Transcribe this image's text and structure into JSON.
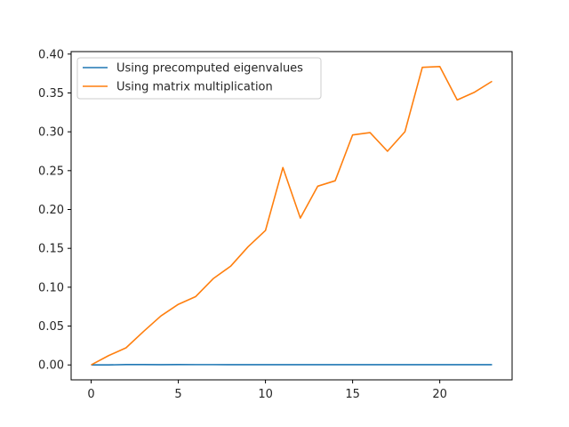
{
  "chart_data": {
    "type": "line",
    "title": "",
    "xlabel": "",
    "ylabel": "",
    "xlim": [
      -1.15,
      24.15
    ],
    "ylim": [
      -0.0192,
      0.4032
    ],
    "xticks": [
      0,
      5,
      10,
      15,
      20
    ],
    "yticks": [
      0.0,
      0.05,
      0.1,
      0.15,
      0.2,
      0.25,
      0.3,
      0.35,
      0.4
    ],
    "ytick_labels": [
      "0.00",
      "0.05",
      "0.10",
      "0.15",
      "0.20",
      "0.25",
      "0.30",
      "0.35",
      "0.40"
    ],
    "grid": false,
    "legend_position": "top-left",
    "x": [
      0,
      1,
      2,
      3,
      4,
      5,
      6,
      7,
      8,
      9,
      10,
      11,
      12,
      13,
      14,
      15,
      16,
      17,
      18,
      19,
      20,
      21,
      22,
      23
    ],
    "series": [
      {
        "name": "Using precomputed eigenvalues",
        "color": "#1f77b4",
        "values": [
          0.0,
          0.0,
          0.0005,
          0.0005,
          0.0003,
          0.0005,
          0.0004,
          0.0004,
          0.0003,
          0.0003,
          0.0003,
          0.0003,
          0.0003,
          0.0003,
          0.0003,
          0.0003,
          0.0003,
          0.0003,
          0.0003,
          0.0003,
          0.0003,
          0.0003,
          0.0003,
          0.0003
        ]
      },
      {
        "name": "Using matrix multiplication",
        "color": "#ff7f0e",
        "values": [
          0.0,
          0.012,
          0.022,
          0.043,
          0.063,
          0.078,
          0.088,
          0.111,
          0.127,
          0.152,
          0.173,
          0.254,
          0.189,
          0.23,
          0.237,
          0.296,
          0.299,
          0.275,
          0.3,
          0.383,
          0.384,
          0.341,
          0.351,
          0.365
        ]
      }
    ]
  }
}
